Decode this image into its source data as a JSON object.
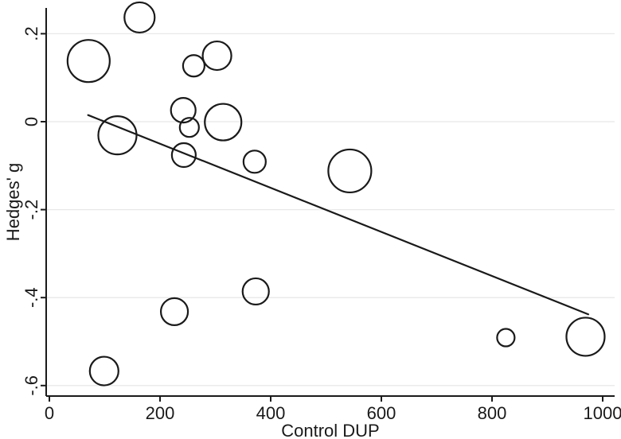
{
  "chart_data": {
    "type": "bubble",
    "title": "",
    "xlabel": "Control DUP",
    "ylabel": "Hedges' g",
    "xlim": [
      -6,
      1022
    ],
    "ylim": [
      -0.62,
      0.26
    ],
    "grid": "horizontal",
    "legend": "none",
    "x_ticks": {
      "values": [
        0,
        200,
        400,
        600,
        800,
        1000
      ],
      "labels": [
        "0",
        "200",
        "400",
        "600",
        "800",
        "1000"
      ]
    },
    "y_ticks": {
      "values": [
        0.2,
        0,
        -0.2,
        -0.4,
        -0.6
      ],
      "labels": [
        ".2",
        "0",
        "-.2",
        "-.4",
        "-.6"
      ]
    },
    "points": [
      {
        "x": 71,
        "y": 0.138,
        "r": 26.5
      },
      {
        "x": 99,
        "y": -0.567,
        "r": 18
      },
      {
        "x": 123,
        "y": -0.031,
        "r": 24
      },
      {
        "x": 163,
        "y": 0.237,
        "r": 19
      },
      {
        "x": 226,
        "y": -0.432,
        "r": 17
      },
      {
        "x": 242,
        "y": 0.026,
        "r": 15.5
      },
      {
        "x": 243,
        "y": -0.076,
        "r": 15
      },
      {
        "x": 253,
        "y": -0.013,
        "r": 12
      },
      {
        "x": 261,
        "y": 0.127,
        "r": 13.5
      },
      {
        "x": 303,
        "y": 0.15,
        "r": 18
      },
      {
        "x": 314,
        "y": -0.001,
        "r": 23
      },
      {
        "x": 371,
        "y": -0.091,
        "r": 14
      },
      {
        "x": 373,
        "y": -0.386,
        "r": 16.5
      },
      {
        "x": 543,
        "y": -0.112,
        "r": 27
      },
      {
        "x": 825,
        "y": -0.491,
        "r": 11
      },
      {
        "x": 969,
        "y": -0.489,
        "r": 24
      }
    ],
    "regression_line": {
      "x1": 70,
      "y1": 0.015,
      "x2": 974,
      "y2": -0.438
    },
    "colors": {
      "stroke": "#1a1a1a",
      "grid": "#e8e8e8",
      "background": "#ffffff"
    }
  }
}
